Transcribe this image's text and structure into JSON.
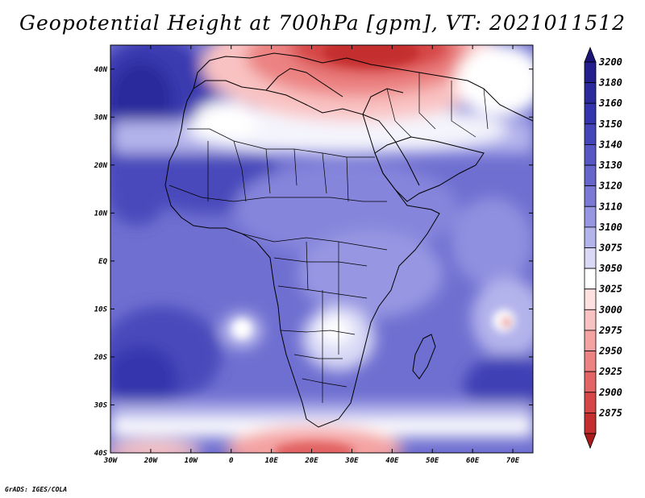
{
  "title": "Geopotential Height at 700hPa [gpm], VT: 2021011512",
  "credit": "GrADS: IGES/COLA",
  "map": {
    "lon_range": [
      -30,
      75
    ],
    "lat_range": [
      -40,
      45
    ],
    "lat_ticks": [
      {
        "value": 40,
        "label": "40N"
      },
      {
        "value": 30,
        "label": "30N"
      },
      {
        "value": 20,
        "label": "20N"
      },
      {
        "value": 10,
        "label": "10N"
      },
      {
        "value": 0,
        "label": "EQ"
      },
      {
        "value": -10,
        "label": "10S"
      },
      {
        "value": -20,
        "label": "20S"
      },
      {
        "value": -30,
        "label": "30S"
      },
      {
        "value": -40,
        "label": "40S"
      }
    ],
    "lon_ticks": [
      {
        "value": -30,
        "label": "30W"
      },
      {
        "value": -20,
        "label": "20W"
      },
      {
        "value": -10,
        "label": "10W"
      },
      {
        "value": 0,
        "label": "0"
      },
      {
        "value": 10,
        "label": "10E"
      },
      {
        "value": 20,
        "label": "20E"
      },
      {
        "value": 30,
        "label": "30E"
      },
      {
        "value": 40,
        "label": "40E"
      },
      {
        "value": 50,
        "label": "50E"
      },
      {
        "value": 60,
        "label": "60E"
      },
      {
        "value": 70,
        "label": "70E"
      }
    ]
  },
  "colorbar": {
    "levels": [
      {
        "label": "3200",
        "color": "#231f8c"
      },
      {
        "label": "3180",
        "color": "#2a2a9c"
      },
      {
        "label": "3160",
        "color": "#3434ad"
      },
      {
        "label": "3150",
        "color": "#4545ba"
      },
      {
        "label": "3140",
        "color": "#5656c5"
      },
      {
        "label": "3130",
        "color": "#6565cc"
      },
      {
        "label": "3120",
        "color": "#7a7ad6"
      },
      {
        "label": "3110",
        "color": "#9696e2"
      },
      {
        "label": "3100",
        "color": "#b4b4ec"
      },
      {
        "label": "3075",
        "color": "#d9d9f6"
      },
      {
        "label": "3050",
        "color": "#ffffff"
      },
      {
        "label": "3025",
        "color": "#fde0e0"
      },
      {
        "label": "3000",
        "color": "#f9c2c2"
      },
      {
        "label": "2975",
        "color": "#f4a2a2"
      },
      {
        "label": "2950",
        "color": "#ec8282"
      },
      {
        "label": "2925",
        "color": "#e26464"
      },
      {
        "label": "2900",
        "color": "#d64646"
      },
      {
        "label": "2875",
        "color": "#c42e2e"
      }
    ],
    "top_cap_color": "#1c1577",
    "bottom_cap_color": "#aa1a1a"
  }
}
